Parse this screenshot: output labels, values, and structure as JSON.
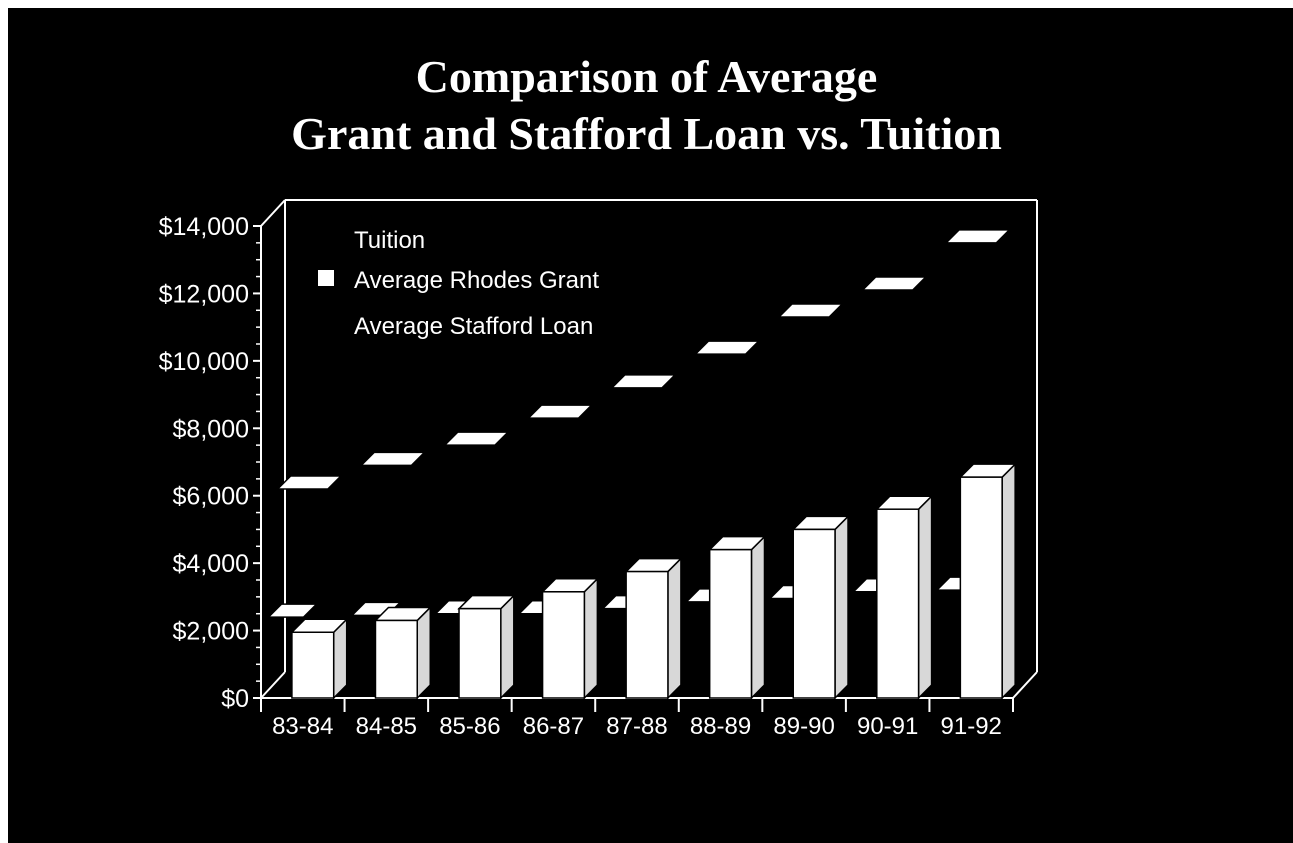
{
  "title_line_1": "Comparison of Average",
  "title_line_2": "Grant and Stafford Loan vs. Tuition",
  "colors": {
    "background": "#000000",
    "foreground": "#ffffff",
    "page": "#ffffff"
  },
  "chart_data": {
    "type": "bar",
    "title": "Comparison of Average Grant and Stafford Loan vs. Tuition",
    "categories": [
      "83-84",
      "84-85",
      "85-86",
      "86-87",
      "87-88",
      "88-89",
      "89-90",
      "90-91",
      "91-92"
    ],
    "ylim": [
      0,
      14000
    ],
    "yticks": [
      "$0",
      "$2,000",
      "$4,000",
      "$6,000",
      "$8,000",
      "$10,000",
      "$12,000",
      "$14,000"
    ],
    "legend_position": "top-left",
    "grid": false,
    "series": [
      {
        "name": "Tuition",
        "marker": "flat-3d-plate",
        "values": [
          6200,
          6900,
          7500,
          8300,
          9200,
          10200,
          11300,
          12100,
          13500
        ]
      },
      {
        "name": "Average Rhodes Grant",
        "marker": "3d-bar",
        "values": [
          1950,
          2300,
          2650,
          3150,
          3750,
          4400,
          5000,
          5600,
          6550
        ]
      },
      {
        "name": "Average Stafford Loan",
        "marker": "flat-3d-plate",
        "values": [
          2400,
          2450,
          2500,
          2500,
          2650,
          2850,
          2950,
          3150,
          3200
        ]
      }
    ]
  }
}
